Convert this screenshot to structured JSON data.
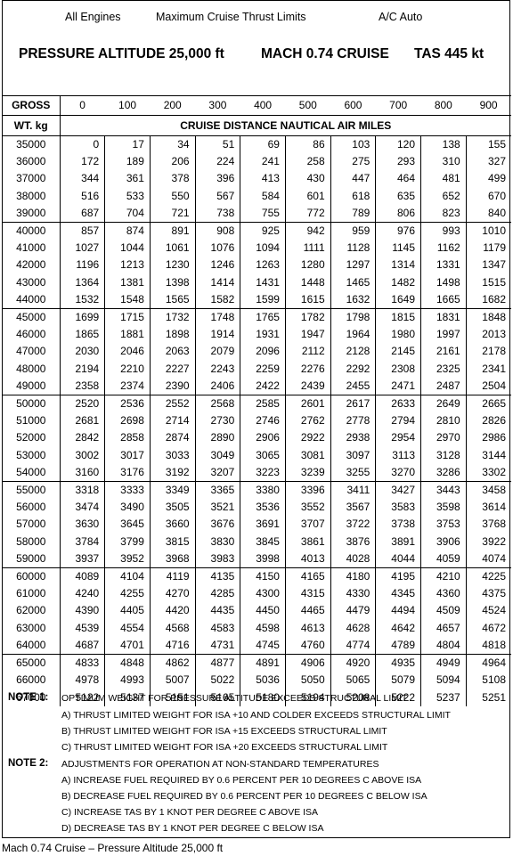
{
  "header": {
    "engines": "All Engines",
    "limits": "Maximum Cruise Thrust Limits",
    "ac": "A/C Auto",
    "altitude": "PRESSURE ALTITUDE  25,000 ft",
    "mach": "MACH 0.74 CRUISE",
    "tas": "TAS 445 kt"
  },
  "table": {
    "gross_label": "GROSS",
    "wt_label": "WT. kg",
    "subtitle": "CRUISE DISTANCE NAUTICAL AIR MILES",
    "columns": [
      "0",
      "100",
      "200",
      "300",
      "400",
      "500",
      "600",
      "700",
      "800",
      "900"
    ],
    "rows": [
      {
        "weight": "35000",
        "values": [
          "0",
          "17",
          "34",
          "51",
          "69",
          "86",
          "103",
          "120",
          "138",
          "155"
        ]
      },
      {
        "weight": "36000",
        "values": [
          "172",
          "189",
          "206",
          "224",
          "241",
          "258",
          "275",
          "293",
          "310",
          "327"
        ]
      },
      {
        "weight": "37000",
        "values": [
          "344",
          "361",
          "378",
          "396",
          "413",
          "430",
          "447",
          "464",
          "481",
          "499"
        ]
      },
      {
        "weight": "38000",
        "values": [
          "516",
          "533",
          "550",
          "567",
          "584",
          "601",
          "618",
          "635",
          "652",
          "670"
        ]
      },
      {
        "weight": "39000",
        "values": [
          "687",
          "704",
          "721",
          "738",
          "755",
          "772",
          "789",
          "806",
          "823",
          "840"
        ]
      },
      {
        "weight": "40000",
        "values": [
          "857",
          "874",
          "891",
          "908",
          "925",
          "942",
          "959",
          "976",
          "993",
          "1010"
        ]
      },
      {
        "weight": "41000",
        "values": [
          "1027",
          "1044",
          "1061",
          "1076",
          "1094",
          "1111",
          "1128",
          "1145",
          "1162",
          "1179"
        ]
      },
      {
        "weight": "42000",
        "values": [
          "1196",
          "1213",
          "1230",
          "1246",
          "1263",
          "1280",
          "1297",
          "1314",
          "1331",
          "1347"
        ]
      },
      {
        "weight": "43000",
        "values": [
          "1364",
          "1381",
          "1398",
          "1414",
          "1431",
          "1448",
          "1465",
          "1482",
          "1498",
          "1515"
        ]
      },
      {
        "weight": "44000",
        "values": [
          "1532",
          "1548",
          "1565",
          "1582",
          "1599",
          "1615",
          "1632",
          "1649",
          "1665",
          "1682"
        ]
      },
      {
        "weight": "45000",
        "values": [
          "1699",
          "1715",
          "1732",
          "1748",
          "1765",
          "1782",
          "1798",
          "1815",
          "1831",
          "1848"
        ]
      },
      {
        "weight": "46000",
        "values": [
          "1865",
          "1881",
          "1898",
          "1914",
          "1931",
          "1947",
          "1964",
          "1980",
          "1997",
          "2013"
        ]
      },
      {
        "weight": "47000",
        "values": [
          "2030",
          "2046",
          "2063",
          "2079",
          "2096",
          "2112",
          "2128",
          "2145",
          "2161",
          "2178"
        ]
      },
      {
        "weight": "48000",
        "values": [
          "2194",
          "2210",
          "2227",
          "2243",
          "2259",
          "2276",
          "2292",
          "2308",
          "2325",
          "2341"
        ]
      },
      {
        "weight": "49000",
        "values": [
          "2358",
          "2374",
          "2390",
          "2406",
          "2422",
          "2439",
          "2455",
          "2471",
          "2487",
          "2504"
        ]
      },
      {
        "weight": "50000",
        "values": [
          "2520",
          "2536",
          "2552",
          "2568",
          "2585",
          "2601",
          "2617",
          "2633",
          "2649",
          "2665"
        ]
      },
      {
        "weight": "51000",
        "values": [
          "2681",
          "2698",
          "2714",
          "2730",
          "2746",
          "2762",
          "2778",
          "2794",
          "2810",
          "2826"
        ]
      },
      {
        "weight": "52000",
        "values": [
          "2842",
          "2858",
          "2874",
          "2890",
          "2906",
          "2922",
          "2938",
          "2954",
          "2970",
          "2986"
        ]
      },
      {
        "weight": "53000",
        "values": [
          "3002",
          "3017",
          "3033",
          "3049",
          "3065",
          "3081",
          "3097",
          "3113",
          "3128",
          "3144"
        ]
      },
      {
        "weight": "54000",
        "values": [
          "3160",
          "3176",
          "3192",
          "3207",
          "3223",
          "3239",
          "3255",
          "3270",
          "3286",
          "3302"
        ]
      },
      {
        "weight": "55000",
        "values": [
          "3318",
          "3333",
          "3349",
          "3365",
          "3380",
          "3396",
          "3411",
          "3427",
          "3443",
          "3458"
        ]
      },
      {
        "weight": "56000",
        "values": [
          "3474",
          "3490",
          "3505",
          "3521",
          "3536",
          "3552",
          "3567",
          "3583",
          "3598",
          "3614"
        ]
      },
      {
        "weight": "57000",
        "values": [
          "3630",
          "3645",
          "3660",
          "3676",
          "3691",
          "3707",
          "3722",
          "3738",
          "3753",
          "3768"
        ]
      },
      {
        "weight": "58000",
        "values": [
          "3784",
          "3799",
          "3815",
          "3830",
          "3845",
          "3861",
          "3876",
          "3891",
          "3906",
          "3922"
        ]
      },
      {
        "weight": "59000",
        "values": [
          "3937",
          "3952",
          "3968",
          "3983",
          "3998",
          "4013",
          "4028",
          "4044",
          "4059",
          "4074"
        ]
      },
      {
        "weight": "60000",
        "values": [
          "4089",
          "4104",
          "4119",
          "4135",
          "4150",
          "4165",
          "4180",
          "4195",
          "4210",
          "4225"
        ]
      },
      {
        "weight": "61000",
        "values": [
          "4240",
          "4255",
          "4270",
          "4285",
          "4300",
          "4315",
          "4330",
          "4345",
          "4360",
          "4375"
        ]
      },
      {
        "weight": "62000",
        "values": [
          "4390",
          "4405",
          "4420",
          "4435",
          "4450",
          "4465",
          "4479",
          "4494",
          "4509",
          "4524"
        ]
      },
      {
        "weight": "63000",
        "values": [
          "4539",
          "4554",
          "4568",
          "4583",
          "4598",
          "4613",
          "4628",
          "4642",
          "4657",
          "4672"
        ]
      },
      {
        "weight": "64000",
        "values": [
          "4687",
          "4701",
          "4716",
          "4731",
          "4745",
          "4760",
          "4774",
          "4789",
          "4804",
          "4818"
        ]
      },
      {
        "weight": "65000",
        "values": [
          "4833",
          "4848",
          "4862",
          "4877",
          "4891",
          "4906",
          "4920",
          "4935",
          "4949",
          "4964"
        ]
      },
      {
        "weight": "66000",
        "values": [
          "4978",
          "4993",
          "5007",
          "5022",
          "5036",
          "5050",
          "5065",
          "5079",
          "5094",
          "5108"
        ]
      },
      {
        "weight": "67000",
        "values": [
          "5122",
          "5137",
          "5151",
          "5165",
          "5180",
          "5194",
          "5208",
          "5222",
          "5237",
          "5251"
        ]
      }
    ]
  },
  "notes": {
    "note1_label": "NOTE 1:",
    "note1_text": "OPTIMUM WEIGHT FOR PRESSURE ALTITUDE EXCEEDS STRUCTURAL LIMIT",
    "note1_items": [
      "A)  THRUST LIMITED WEIGHT FOR ISA +10 AND COLDER EXCEEDS STRUCTURAL LIMIT",
      "B)  THRUST LIMITED WEIGHT FOR ISA +15 EXCEEDS STRUCTURAL LIMIT",
      "C)  THRUST LIMITED WEIGHT FOR ISA +20 EXCEEDS STRUCTURAL LIMIT"
    ],
    "note2_label": "NOTE 2:",
    "note2_text": "ADJUSTMENTS FOR OPERATION AT NON-STANDARD TEMPERATURES",
    "note2_items": [
      "A)  INCREASE FUEL REQUIRED BY 0.6 PERCENT PER 10 DEGREES C ABOVE ISA",
      "B)  DECREASE FUEL REQUIRED BY 0.6 PERCENT PER 10 DEGREES C BELOW ISA",
      "C)  INCREASE TAS BY 1 KNOT PER DEGREE C ABOVE ISA",
      "D)  DECREASE TAS BY 1 KNOT PER DEGREE C BELOW ISA"
    ]
  },
  "caption": "Mach 0.74 Cruise – Pressure Altitude 25,000 ft"
}
